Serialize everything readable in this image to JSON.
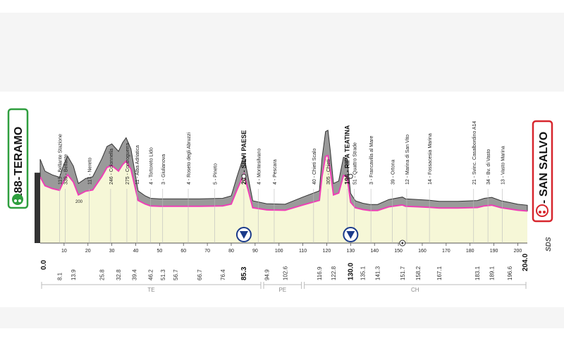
{
  "start": {
    "km": "0.0",
    "alt": "188",
    "name": "TERAMO"
  },
  "finish": {
    "km": "204.0",
    "alt": "2",
    "name": "SAN SALVO"
  },
  "brand": "SDS",
  "alt_tick": "200",
  "colors": {
    "start": "#2e9e3e",
    "finish": "#d7262d",
    "profile": "#ee3fb6",
    "fill": "#f6f7d7",
    "relief": "#9a9a9a"
  },
  "chart_data": {
    "type": "area",
    "title": "",
    "xlabel": "",
    "ylabel": "",
    "xlim": [
      0,
      204
    ],
    "x_ticks": [
      10,
      20,
      30,
      40,
      50,
      60,
      70,
      80,
      90,
      100,
      110,
      120,
      130,
      140,
      150,
      160,
      170,
      180,
      190,
      200
    ],
    "profile": [
      [
        0,
        188
      ],
      [
        2,
        140
      ],
      [
        5,
        125
      ],
      [
        8.1,
        115
      ],
      [
        10,
        170
      ],
      [
        11.5,
        200
      ],
      [
        13.9,
        160
      ],
      [
        16,
        90
      ],
      [
        19,
        110
      ],
      [
        22,
        117
      ],
      [
        25.8,
        190
      ],
      [
        28,
        240
      ],
      [
        30,
        250
      ],
      [
        32.8,
        220
      ],
      [
        34.5,
        255
      ],
      [
        36,
        275
      ],
      [
        38,
        230
      ],
      [
        39.4,
        150
      ],
      [
        41,
        60
      ],
      [
        44,
        40
      ],
      [
        46.2,
        30
      ],
      [
        50,
        28
      ],
      [
        56.7,
        28
      ],
      [
        66.7,
        28
      ],
      [
        76.4,
        30
      ],
      [
        80,
        40
      ],
      [
        82.5,
        120
      ],
      [
        85.3,
        203
      ],
      [
        87,
        120
      ],
      [
        89,
        20
      ],
      [
        94.9,
        8
      ],
      [
        102.6,
        6
      ],
      [
        110,
        35
      ],
      [
        116.9,
        60
      ],
      [
        118,
        190
      ],
      [
        119.5,
        300
      ],
      [
        120.5,
        305
      ],
      [
        121.5,
        220
      ],
      [
        122.8,
        90
      ],
      [
        125,
        100
      ],
      [
        127,
        196
      ],
      [
        128.5,
        190
      ],
      [
        130,
        50
      ],
      [
        132,
        20
      ],
      [
        135.1,
        10
      ],
      [
        138,
        5
      ],
      [
        141.3,
        5
      ],
      [
        146,
        25
      ],
      [
        151.7,
        35
      ],
      [
        153,
        28
      ],
      [
        158.2,
        25
      ],
      [
        163,
        22
      ],
      [
        167.1,
        18
      ],
      [
        175,
        18
      ],
      [
        183.1,
        21
      ],
      [
        186,
        30
      ],
      [
        189.1,
        34
      ],
      [
        193,
        20
      ],
      [
        196.6,
        13
      ],
      [
        200,
        6
      ],
      [
        204,
        2
      ]
    ],
    "waypoints": [
      {
        "km": 8.1,
        "label": "115 - Bellante Stazione",
        "alt": 115
      },
      {
        "km": 10.5,
        "label": "339 - Bellante",
        "alt": 339
      },
      {
        "km": 20.5,
        "label": "117 - Nereto",
        "alt": 117
      },
      {
        "km": 29.5,
        "label": "246 - Colonnella",
        "alt": 246
      },
      {
        "km": 36.3,
        "label": "275 - Controguerra",
        "alt": 275
      },
      {
        "km": 40.5,
        "label": "11 - Alba Adriatica",
        "alt": 11
      },
      {
        "km": 46.2,
        "label": "4 - Tortoreto Lido",
        "alt": 4
      },
      {
        "km": 51.3,
        "label": "3 - Giulianova",
        "alt": 3
      },
      {
        "km": 62,
        "label": "4 - Roseto degli Abruzzi",
        "alt": 4
      },
      {
        "km": 73,
        "label": "5 - Pineto",
        "alt": 5
      },
      {
        "km": 85.3,
        "label": "203 - SILVI PAESE",
        "alt": 203,
        "bold": true
      },
      {
        "km": 91.3,
        "label": "4 - Montesilvano",
        "alt": 4
      },
      {
        "km": 98,
        "label": "4 - Pescara",
        "alt": 4
      },
      {
        "km": 114.5,
        "label": "40 - Chieti Scalo",
        "alt": 40
      },
      {
        "km": 120.5,
        "label": "305 - Chieti",
        "alt": 305
      },
      {
        "km": 128.5,
        "label": "196 - RIPA TEATINA",
        "alt": 196,
        "bold": true
      },
      {
        "km": 131.5,
        "label": "51 - Quattro Strade",
        "alt": 51
      },
      {
        "km": 138.5,
        "label": "3 - Francavilla al Mare",
        "alt": 3
      },
      {
        "km": 147.5,
        "label": "39 - Ortona",
        "alt": 39
      },
      {
        "km": 153.5,
        "label": "12 - Marina di San Vito",
        "alt": 12
      },
      {
        "km": 163,
        "label": "14 - Fossacesia Marina",
        "alt": 14
      },
      {
        "km": 181.5,
        "label": "21 - Svinc. Casalbordino A14",
        "alt": 21
      },
      {
        "km": 187.5,
        "label": "34 - Bv. di Vasto",
        "alt": 34
      },
      {
        "km": 193.5,
        "label": "13 - Vasto Marina",
        "alt": 13
      }
    ],
    "distance_markers": [
      {
        "km": 8.1,
        "label": "8.1"
      },
      {
        "km": 13.9,
        "label": "13.9"
      },
      {
        "km": 25.8,
        "label": "25.8"
      },
      {
        "km": 32.8,
        "label": "32.8"
      },
      {
        "km": 39.4,
        "label": "39.4"
      },
      {
        "km": 46.2,
        "label": "46.2"
      },
      {
        "km": 51.3,
        "label": "51.3"
      },
      {
        "km": 56.7,
        "label": "56.7"
      },
      {
        "km": 66.7,
        "label": "66.7"
      },
      {
        "km": 76.4,
        "label": "76.4"
      },
      {
        "km": 85.3,
        "label": "85.3",
        "bold": true
      },
      {
        "km": 94.9,
        "label": "94.9"
      },
      {
        "km": 102.6,
        "label": "102.6"
      },
      {
        "km": 116.9,
        "label": "116.9"
      },
      {
        "km": 122.8,
        "label": "122.8"
      },
      {
        "km": 130.0,
        "label": "130.0",
        "bold": true
      },
      {
        "km": 135.1,
        "label": "135.1"
      },
      {
        "km": 141.3,
        "label": "141.3"
      },
      {
        "km": 151.7,
        "label": "151.7"
      },
      {
        "km": 158.2,
        "label": "158.2"
      },
      {
        "km": 167.1,
        "label": "167.1"
      },
      {
        "km": 183.1,
        "label": "183.1"
      },
      {
        "km": 189.1,
        "label": "189.1"
      },
      {
        "km": 196.6,
        "label": "196.6"
      }
    ],
    "kom": [
      {
        "km": 85.3
      },
      {
        "km": 130.0
      }
    ],
    "sprint": [
      {
        "km": 151.7
      }
    ],
    "regions": [
      {
        "label": "TE",
        "from": 0,
        "to": 93
      },
      {
        "label": "PE",
        "from": 93,
        "to": 110
      },
      {
        "label": "CH",
        "from": 110,
        "to": 204
      }
    ]
  }
}
